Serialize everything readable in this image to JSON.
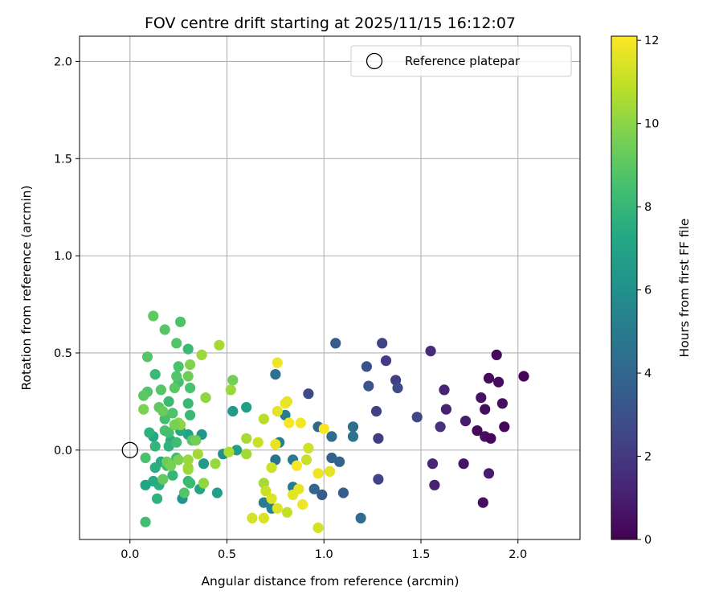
{
  "chart_data": {
    "type": "scatter",
    "title": "FOV centre drift starting at 2025/11/15 16:12:07",
    "xlabel": "Angular distance from reference (arcmin)",
    "ylabel": "Rotation from reference (arcmin)",
    "xlim": [
      -0.26,
      2.32
    ],
    "ylim": [
      -0.46,
      2.13
    ],
    "xticks": [
      0.0,
      0.5,
      1.0,
      1.5,
      2.0
    ],
    "yticks": [
      0.0,
      0.5,
      1.0,
      1.5,
      2.0
    ],
    "xtick_labels": [
      "0.0",
      "0.5",
      "1.0",
      "1.5",
      "2.0"
    ],
    "ytick_labels": [
      "0.0",
      "0.5",
      "1.0",
      "1.5",
      "2.0"
    ],
    "grid": true,
    "legend": {
      "location": "top-right",
      "entries": [
        "Reference platepar"
      ]
    },
    "reference_point": {
      "label": "Reference platepar",
      "x": 0.0,
      "y": 0.0
    },
    "colorbar": {
      "label": "Hours from first FF file",
      "colormap": "viridis",
      "range": [
        0,
        12.1
      ],
      "ticks": [
        0,
        2,
        4,
        6,
        8,
        10,
        12
      ],
      "tick_labels": [
        "0",
        "2",
        "4",
        "6",
        "8",
        "10",
        "12"
      ]
    },
    "points": [
      [
        2.03,
        0.38,
        0.1
      ],
      [
        1.89,
        0.49,
        0.3
      ],
      [
        1.85,
        0.37,
        0.3
      ],
      [
        1.9,
        0.35,
        0.4
      ],
      [
        1.92,
        0.24,
        0.5
      ],
      [
        1.81,
        0.27,
        0.6
      ],
      [
        1.83,
        0.21,
        0.4
      ],
      [
        1.93,
        0.12,
        0.2
      ],
      [
        1.79,
        0.1,
        0.3
      ],
      [
        1.83,
        0.07,
        0.5
      ],
      [
        1.86,
        0.06,
        0.2
      ],
      [
        1.73,
        0.15,
        0.9
      ],
      [
        1.72,
        -0.07,
        0.7
      ],
      [
        1.85,
        -0.12,
        0.9
      ],
      [
        1.82,
        -0.27,
        0.5
      ],
      [
        1.55,
        0.51,
        1.5
      ],
      [
        1.63,
        0.21,
        1.1
      ],
      [
        1.62,
        0.31,
        1.2
      ],
      [
        1.6,
        0.12,
        1.7
      ],
      [
        1.56,
        -0.07,
        1.3
      ],
      [
        1.57,
        -0.18,
        1.1
      ],
      [
        1.3,
        0.55,
        2.4
      ],
      [
        1.32,
        0.46,
        2.1
      ],
      [
        1.37,
        0.36,
        2.2
      ],
      [
        1.38,
        0.32,
        2.8
      ],
      [
        1.27,
        0.2,
        2.3
      ],
      [
        1.28,
        0.06,
        2.2
      ],
      [
        1.28,
        -0.15,
        2.4
      ],
      [
        1.48,
        0.17,
        2.6
      ],
      [
        1.22,
        0.43,
        3.0
      ],
      [
        1.23,
        0.33,
        3.2
      ],
      [
        1.06,
        0.55,
        3.5
      ],
      [
        0.92,
        0.29,
        2.6
      ],
      [
        0.97,
        0.12,
        4.1
      ],
      [
        1.04,
        0.07,
        4.2
      ],
      [
        1.15,
        0.12,
        4.4
      ],
      [
        1.15,
        0.07,
        4.6
      ],
      [
        1.04,
        -0.04,
        3.7
      ],
      [
        1.08,
        -0.06,
        3.8
      ],
      [
        0.95,
        -0.2,
        3.9
      ],
      [
        1.1,
        -0.22,
        3.6
      ],
      [
        0.99,
        -0.23,
        3.5
      ],
      [
        1.19,
        -0.35,
        4.3
      ],
      [
        0.75,
        0.39,
        4.5
      ],
      [
        0.8,
        0.18,
        5.0
      ],
      [
        0.77,
        0.04,
        5.2
      ],
      [
        0.75,
        -0.05,
        4.6
      ],
      [
        0.84,
        -0.05,
        4.9
      ],
      [
        0.84,
        -0.19,
        5.0
      ],
      [
        0.69,
        -0.27,
        5.0
      ],
      [
        0.73,
        -0.3,
        5.3
      ],
      [
        0.53,
        0.2,
        6.5
      ],
      [
        0.6,
        0.22,
        6.8
      ],
      [
        0.55,
        0.0,
        6.7
      ],
      [
        0.48,
        -0.02,
        6.0
      ],
      [
        0.37,
        0.08,
        6.3
      ],
      [
        0.38,
        -0.07,
        6.5
      ],
      [
        0.27,
        -0.25,
        6.2
      ],
      [
        0.45,
        -0.22,
        6.8
      ],
      [
        0.36,
        -0.2,
        7.1
      ],
      [
        0.3,
        0.08,
        7.0
      ],
      [
        0.26,
        0.1,
        7.3
      ],
      [
        0.21,
        0.05,
        7.5
      ],
      [
        0.2,
        0.02,
        7.8
      ],
      [
        0.16,
        -0.06,
        7.4
      ],
      [
        0.12,
        0.07,
        7.2
      ],
      [
        0.1,
        0.09,
        7.7
      ],
      [
        0.13,
        0.02,
        7.9
      ],
      [
        0.15,
        -0.18,
        7.6
      ],
      [
        0.12,
        -0.16,
        7.4
      ],
      [
        0.08,
        -0.18,
        7.1
      ],
      [
        0.13,
        -0.09,
        7.6
      ],
      [
        0.14,
        -0.25,
        7.8
      ],
      [
        0.22,
        -0.13,
        8.0
      ],
      [
        0.19,
        -0.08,
        8.4
      ],
      [
        0.2,
        0.25,
        8.2
      ],
      [
        0.18,
        0.16,
        8.4
      ],
      [
        0.22,
        0.19,
        8.7
      ],
      [
        0.18,
        0.1,
        8.6
      ],
      [
        0.2,
        0.09,
        8.5
      ],
      [
        0.24,
        0.04,
        8.3
      ],
      [
        0.24,
        -0.04,
        8.3
      ],
      [
        0.31,
        0.18,
        8.2
      ],
      [
        0.31,
        0.32,
        8.6
      ],
      [
        0.25,
        0.35,
        8.4
      ],
      [
        0.3,
        0.24,
        8.1
      ],
      [
        0.3,
        -0.16,
        8.0
      ],
      [
        0.31,
        -0.17,
        8.2
      ],
      [
        0.28,
        -0.22,
        8.8
      ],
      [
        0.21,
        -0.07,
        8.7
      ],
      [
        0.09,
        0.3,
        8.8
      ],
      [
        0.07,
        0.28,
        9.0
      ],
      [
        0.09,
        0.48,
        8.9
      ],
      [
        0.13,
        0.39,
        8.1
      ],
      [
        0.18,
        0.62,
        8.9
      ],
      [
        0.26,
        0.66,
        8.7
      ],
      [
        0.24,
        0.55,
        8.8
      ],
      [
        0.3,
        0.52,
        8.2
      ],
      [
        0.25,
        0.43,
        8.6
      ],
      [
        0.24,
        0.38,
        8.8
      ],
      [
        0.23,
        0.32,
        9.0
      ],
      [
        0.16,
        0.31,
        8.9
      ],
      [
        0.15,
        0.22,
        9.1
      ],
      [
        0.17,
        0.2,
        9.3
      ],
      [
        0.08,
        -0.04,
        8.6
      ],
      [
        0.08,
        -0.37,
        8.4
      ],
      [
        0.17,
        -0.15,
        9.2
      ],
      [
        0.19,
        -0.06,
        9.4
      ],
      [
        0.21,
        -0.08,
        9.6
      ],
      [
        0.25,
        -0.05,
        9.7
      ],
      [
        0.3,
        0.38,
        9.4
      ],
      [
        0.31,
        0.44,
        9.8
      ],
      [
        0.12,
        0.69,
        9.1
      ],
      [
        0.07,
        0.21,
        9.7
      ],
      [
        0.32,
        0.05,
        9.0
      ],
      [
        0.34,
        0.05,
        9.5
      ],
      [
        0.25,
        0.14,
        9.9
      ],
      [
        0.26,
        0.13,
        10.0
      ],
      [
        0.23,
        0.13,
        9.6
      ],
      [
        0.3,
        -0.05,
        10.2
      ],
      [
        0.3,
        -0.09,
        10.4
      ],
      [
        0.3,
        -0.1,
        10.3
      ],
      [
        0.38,
        -0.17,
        10.1
      ],
      [
        0.35,
        -0.02,
        10.4
      ],
      [
        0.44,
        -0.07,
        10.2
      ],
      [
        0.37,
        0.49,
        10.3
      ],
      [
        0.39,
        0.27,
        10.1
      ],
      [
        0.46,
        0.54,
        10.5
      ],
      [
        0.53,
        0.36,
        9.5
      ],
      [
        0.52,
        0.31,
        10.3
      ],
      [
        0.51,
        -0.01,
        10.6
      ],
      [
        0.6,
        0.06,
        10.5
      ],
      [
        0.6,
        -0.02,
        10.4
      ],
      [
        0.66,
        0.04,
        11.1
      ],
      [
        0.69,
        0.16,
        10.8
      ],
      [
        0.69,
        -0.17,
        10.5
      ],
      [
        0.73,
        -0.09,
        11.2
      ],
      [
        0.69,
        -0.35,
        11.4
      ],
      [
        0.63,
        -0.35,
        11.3
      ],
      [
        0.7,
        -0.21,
        11.1
      ],
      [
        0.73,
        -0.25,
        11.5
      ],
      [
        0.75,
        0.03,
        11.7
      ],
      [
        0.76,
        -0.3,
        11.5
      ],
      [
        0.76,
        0.2,
        11.6
      ],
      [
        0.76,
        0.45,
        11.8
      ],
      [
        0.8,
        0.24,
        11.9
      ],
      [
        0.81,
        0.25,
        11.7
      ],
      [
        0.82,
        0.14,
        12.0
      ],
      [
        0.81,
        -0.32,
        11.0
      ],
      [
        0.84,
        -0.23,
        11.6
      ],
      [
        0.86,
        -0.08,
        12.0
      ],
      [
        0.87,
        -0.2,
        11.7
      ],
      [
        0.89,
        -0.28,
        11.8
      ],
      [
        0.88,
        0.14,
        11.9
      ],
      [
        0.91,
        -0.05,
        11.1
      ],
      [
        0.92,
        0.01,
        11.2
      ],
      [
        0.97,
        -0.12,
        11.8
      ],
      [
        0.97,
        -0.4,
        11.3
      ],
      [
        1.0,
        0.11,
        12.0
      ],
      [
        1.03,
        -0.11,
        11.6
      ]
    ]
  },
  "colors": {
    "grid": "#b0b0b0",
    "axes": "#000000",
    "background": "#ffffff"
  }
}
